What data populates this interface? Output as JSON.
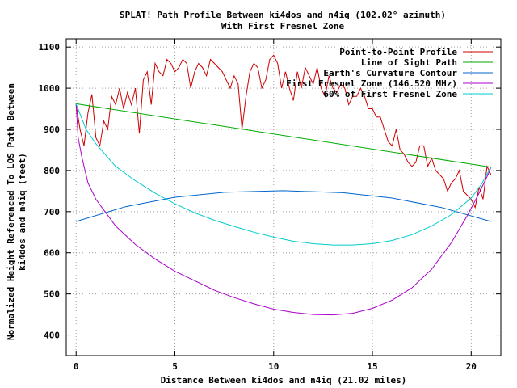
{
  "chart_data": {
    "type": "line",
    "title": "SPLAT! Path Profile Between ki4dos and n4iq (102.02° azimuth)",
    "subtitle": "With First Fresnel Zone",
    "xlabel": "Distance Between ki4dos and n4iq (21.02 miles)",
    "ylabel_line1": "Normalized Height Referenced To LOS Path Between",
    "ylabel_line2": "ki4dos and n4iq (feet)",
    "xlim": [
      -0.5,
      21.5
    ],
    "ylim": [
      350,
      1120
    ],
    "xticks": [
      0,
      5,
      10,
      15,
      20
    ],
    "yticks": [
      400,
      500,
      600,
      700,
      800,
      900,
      1000,
      1100
    ],
    "grid": true,
    "legend_position": "top-right",
    "series": [
      {
        "name": "Point-to-Point Profile",
        "color": "#cc0000",
        "x": [
          0,
          0.2,
          0.4,
          0.6,
          0.8,
          1.0,
          1.2,
          1.4,
          1.6,
          1.8,
          2.0,
          2.2,
          2.4,
          2.6,
          2.8,
          3.0,
          3.2,
          3.4,
          3.6,
          3.8,
          4.0,
          4.2,
          4.4,
          4.6,
          4.8,
          5.0,
          5.2,
          5.4,
          5.6,
          5.8,
          6.0,
          6.2,
          6.4,
          6.6,
          6.8,
          7.0,
          7.2,
          7.4,
          7.6,
          7.8,
          8.0,
          8.2,
          8.4,
          8.6,
          8.8,
          9.0,
          9.2,
          9.4,
          9.6,
          9.8,
          10.0,
          10.2,
          10.4,
          10.6,
          10.8,
          11.0,
          11.2,
          11.4,
          11.6,
          11.8,
          12.0,
          12.2,
          12.4,
          12.6,
          12.8,
          13.0,
          13.2,
          13.4,
          13.6,
          13.8,
          14.0,
          14.2,
          14.4,
          14.6,
          14.8,
          15.0,
          15.2,
          15.4,
          15.6,
          15.8,
          16.0,
          16.2,
          16.4,
          16.6,
          16.8,
          17.0,
          17.2,
          17.4,
          17.6,
          17.8,
          18.0,
          18.2,
          18.4,
          18.6,
          18.8,
          19.0,
          19.2,
          19.4,
          19.6,
          19.8,
          20.0,
          20.2,
          20.4,
          20.6,
          20.8,
          21.0
        ],
        "y": [
          960,
          900,
          860,
          940,
          985,
          880,
          860,
          920,
          900,
          980,
          960,
          1000,
          950,
          990,
          960,
          1000,
          890,
          1020,
          1040,
          960,
          1060,
          1040,
          1030,
          1070,
          1060,
          1040,
          1050,
          1070,
          1060,
          1000,
          1040,
          1060,
          1050,
          1030,
          1070,
          1060,
          1050,
          1040,
          1020,
          1000,
          1030,
          1010,
          900,
          980,
          1040,
          1060,
          1050,
          1000,
          1020,
          1070,
          1080,
          1060,
          1000,
          1040,
          1000,
          970,
          1040,
          1000,
          1050,
          1030,
          1010,
          1050,
          1000,
          980,
          1030,
          1000,
          990,
          1010,
          1000,
          960,
          980,
          980,
          1000,
          980,
          950,
          950,
          930,
          930,
          900,
          870,
          860,
          900,
          850,
          840,
          820,
          810,
          820,
          860,
          860,
          810,
          830,
          800,
          790,
          780,
          750,
          770,
          780,
          800,
          750,
          740,
          730,
          710,
          760,
          730,
          810,
          790
        ],
        "reading": "approximate"
      },
      {
        "name": "Line of Sight Path",
        "color": "#00aa00",
        "x": [
          0,
          21.0
        ],
        "y": [
          962,
          808
        ]
      },
      {
        "name": "Earth's Curvature Contour",
        "color": "#0066cc",
        "x": [
          0,
          2.5,
          5,
          7.5,
          10.5,
          13.5,
          16,
          18.5,
          21.0
        ],
        "y": [
          676,
          712,
          735,
          747,
          751,
          746,
          733,
          710,
          676
        ]
      },
      {
        "name": "First Fresnel Zone (146.520 MHz)",
        "color": "#aa00cc",
        "x": [
          0,
          0.1,
          0.3,
          0.6,
          1,
          2,
          3,
          4,
          5,
          6,
          7,
          8,
          9,
          10,
          11,
          12,
          13,
          14,
          15,
          16,
          17,
          18,
          19,
          19.8,
          20.4,
          20.7,
          20.9,
          21.0
        ],
        "y": [
          962,
          880,
          830,
          770,
          730,
          665,
          620,
          585,
          555,
          532,
          509,
          491,
          476,
          463,
          455,
          450,
          449,
          453,
          465,
          485,
          515,
          560,
          625,
          690,
          745,
          775,
          795,
          808
        ]
      },
      {
        "name": "60% of First Fresnel Zone",
        "color": "#00cccc",
        "x": [
          0,
          0.5,
          1,
          2,
          3,
          4,
          5,
          6,
          7,
          8,
          9,
          10,
          11,
          12,
          13,
          14,
          15,
          16,
          17,
          18,
          19,
          20,
          20.5,
          21.0
        ],
        "y": [
          962,
          900,
          865,
          810,
          775,
          745,
          719,
          697,
          679,
          664,
          650,
          638,
          628,
          622,
          619,
          619,
          622,
          630,
          644,
          665,
          693,
          733,
          765,
          808
        ]
      }
    ]
  }
}
